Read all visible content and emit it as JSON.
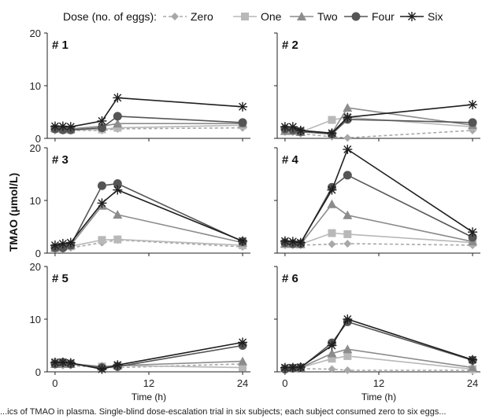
{
  "legend": {
    "title": "Dose (no. of eggs):",
    "items": [
      "Zero",
      "One",
      "Two",
      "Four",
      "Six"
    ]
  },
  "caption": "...ics of TMAO in plasma. Single-blind dose-escalation trial in six subjects; each subject consumed zero to six eggs...",
  "colors": {
    "Zero": "#a8a8a8",
    "One": "#b8b8b8",
    "Two": "#8c8c8c",
    "Four": "#555555",
    "Six": "#1e1e1e"
  },
  "chart_data": [
    {
      "type": "line",
      "title": "# 1",
      "xlabel": "",
      "ylabel": "TMAO (μmol/L)",
      "x": [
        0,
        1,
        2,
        6,
        8,
        24
      ],
      "xlim": [
        -1,
        25
      ],
      "ylim": [
        0,
        20
      ],
      "xticks": [
        "0",
        "12",
        "24"
      ],
      "yticks": [
        "0",
        "10",
        "20"
      ],
      "grid": false,
      "series": [
        {
          "name": "Zero",
          "values": [
            1.5,
            1.5,
            1.5,
            1.5,
            1.8,
            2.0
          ]
        },
        {
          "name": "One",
          "values": [
            1.8,
            1.7,
            1.6,
            1.7,
            2.0,
            2.5
          ]
        },
        {
          "name": "Two",
          "values": [
            2.0,
            2.0,
            1.8,
            2.3,
            2.8,
            2.8
          ]
        },
        {
          "name": "Four",
          "values": [
            1.8,
            1.6,
            1.6,
            2.0,
            4.2,
            3.0
          ]
        },
        {
          "name": "Six",
          "values": [
            2.3,
            2.3,
            2.2,
            3.3,
            7.7,
            6.0
          ]
        }
      ]
    },
    {
      "type": "line",
      "title": "# 2",
      "xlabel": "",
      "ylabel": "TMAO (μmol/L)",
      "x": [
        0,
        1,
        2,
        6,
        8,
        24
      ],
      "xlim": [
        -1,
        25
      ],
      "ylim": [
        0,
        20
      ],
      "xticks": [
        "0",
        "12",
        "24"
      ],
      "yticks": [
        "0",
        "10",
        "20"
      ],
      "grid": false,
      "series": [
        {
          "name": "Zero",
          "values": [
            1.2,
            1.2,
            0.9,
            0.3,
            0.1,
            1.5
          ]
        },
        {
          "name": "One",
          "values": [
            1.6,
            1.6,
            1.2,
            3.5,
            4.0,
            2.2
          ]
        },
        {
          "name": "Two",
          "values": [
            1.4,
            1.4,
            1.2,
            1.0,
            5.8,
            2.5
          ]
        },
        {
          "name": "Four",
          "values": [
            1.8,
            1.6,
            1.3,
            0.8,
            3.6,
            3.0
          ]
        },
        {
          "name": "Six",
          "values": [
            2.2,
            2.2,
            1.5,
            1.0,
            4.0,
            6.4
          ]
        }
      ]
    },
    {
      "type": "line",
      "title": "# 3",
      "xlabel": "",
      "ylabel": "TMAO (μmol/L)",
      "x": [
        0,
        1,
        2,
        6,
        8,
        24
      ],
      "xlim": [
        -1,
        25
      ],
      "ylim": [
        0,
        20
      ],
      "xticks": [
        "0",
        "12",
        "24"
      ],
      "yticks": [
        "0",
        "10",
        "20"
      ],
      "grid": false,
      "series": [
        {
          "name": "Zero",
          "values": [
            0.8,
            0.8,
            1.0,
            2.0,
            2.5,
            1.2
          ]
        },
        {
          "name": "One",
          "values": [
            1.0,
            1.2,
            1.3,
            2.5,
            2.6,
            1.5
          ]
        },
        {
          "name": "Two",
          "values": [
            1.0,
            1.5,
            1.5,
            9.0,
            7.3,
            2.0
          ]
        },
        {
          "name": "Four",
          "values": [
            1.0,
            1.0,
            1.5,
            12.8,
            13.2,
            2.2
          ]
        },
        {
          "name": "Six",
          "values": [
            1.5,
            1.8,
            2.0,
            9.5,
            12.0,
            2.3
          ]
        }
      ]
    },
    {
      "type": "line",
      "title": "# 4",
      "xlabel": "",
      "ylabel": "TMAO (μmol/L)",
      "x": [
        0,
        1,
        2,
        6,
        8,
        24
      ],
      "xlim": [
        -1,
        25
      ],
      "ylim": [
        0,
        20
      ],
      "xticks": [
        "0",
        "12",
        "24"
      ],
      "yticks": [
        "0",
        "10",
        "20"
      ],
      "grid": false,
      "series": [
        {
          "name": "Zero",
          "values": [
            1.5,
            1.5,
            1.5,
            1.7,
            1.8,
            1.5
          ]
        },
        {
          "name": "One",
          "values": [
            1.7,
            1.7,
            1.7,
            3.8,
            3.6,
            2.0
          ]
        },
        {
          "name": "Two",
          "values": [
            1.8,
            1.8,
            1.7,
            9.3,
            7.2,
            2.2
          ]
        },
        {
          "name": "Four",
          "values": [
            2.0,
            1.8,
            1.8,
            12.5,
            14.8,
            3.0
          ]
        },
        {
          "name": "Six",
          "values": [
            2.3,
            2.2,
            2.0,
            12.0,
            19.7,
            4.0
          ]
        }
      ]
    },
    {
      "type": "line",
      "title": "# 5",
      "xlabel": "Time (h)",
      "ylabel": "TMAO (μmol/L)",
      "x": [
        0,
        1,
        2,
        6,
        8,
        24
      ],
      "xlim": [
        -1,
        25
      ],
      "ylim": [
        0,
        20
      ],
      "xticks": [
        "0",
        "12",
        "24"
      ],
      "yticks": [
        "0",
        "10",
        "20"
      ],
      "grid": false,
      "series": [
        {
          "name": "Zero",
          "values": [
            1.3,
            1.2,
            1.2,
            0.8,
            0.8,
            1.5
          ]
        },
        {
          "name": "One",
          "values": [
            1.8,
            1.8,
            1.6,
            1.0,
            1.2,
            0.8
          ]
        },
        {
          "name": "Two",
          "values": [
            1.5,
            1.5,
            1.5,
            1.0,
            1.2,
            2.0
          ]
        },
        {
          "name": "Four",
          "values": [
            1.5,
            1.8,
            1.5,
            0.8,
            1.0,
            5.0
          ]
        },
        {
          "name": "Six",
          "values": [
            1.8,
            1.8,
            1.7,
            0.5,
            1.3,
            5.6
          ]
        }
      ]
    },
    {
      "type": "line",
      "title": "# 6",
      "xlabel": "Time (h)",
      "ylabel": "TMAO (μmol/L)",
      "x": [
        0,
        1,
        2,
        6,
        8,
        24
      ],
      "xlim": [
        -1,
        25
      ],
      "ylim": [
        0,
        20
      ],
      "xticks": [
        "0",
        "12",
        "24"
      ],
      "yticks": [
        "0",
        "10",
        "20"
      ],
      "grid": false,
      "series": [
        {
          "name": "Zero",
          "values": [
            0.6,
            0.6,
            0.6,
            0.5,
            0.3,
            0.3
          ]
        },
        {
          "name": "One",
          "values": [
            0.7,
            0.7,
            0.8,
            2.5,
            3.0,
            0.5
          ]
        },
        {
          "name": "Two",
          "values": [
            0.7,
            0.7,
            0.8,
            3.5,
            4.3,
            0.8
          ]
        },
        {
          "name": "Four",
          "values": [
            0.5,
            0.7,
            0.8,
            5.5,
            9.5,
            2.2
          ]
        },
        {
          "name": "Six",
          "values": [
            0.8,
            0.8,
            0.9,
            5.0,
            10.0,
            2.3
          ]
        }
      ]
    }
  ]
}
